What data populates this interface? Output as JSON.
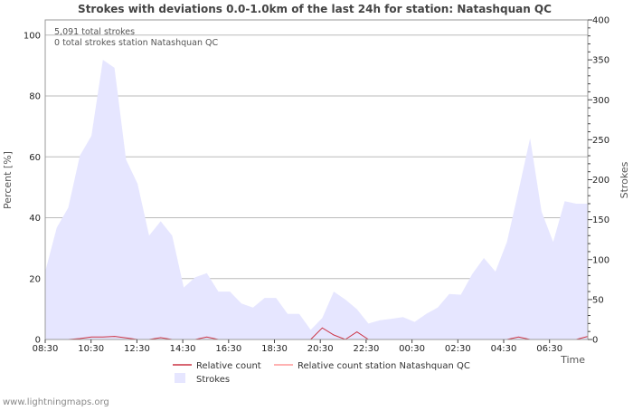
{
  "chart_data": {
    "type": "area",
    "title": "Strokes with deviations 0.0-1.0km of the last 24h for station: Natashquan QC",
    "xlabel": "Time",
    "ylabel": "Percent   [%]",
    "y2label": "Strokes",
    "ylim": [
      0,
      105
    ],
    "y2lim": [
      0,
      400
    ],
    "yticks": [
      0,
      20,
      40,
      60,
      80,
      100
    ],
    "y2ticks": [
      0,
      50,
      100,
      150,
      200,
      250,
      300,
      350,
      400
    ],
    "xticks": [
      "08:30",
      "10:30",
      "12:30",
      "14:30",
      "16:30",
      "18:30",
      "20:30",
      "22:30",
      "00:30",
      "02:30",
      "04:30",
      "06:30"
    ],
    "annotations": [
      "5,091 total strokes",
      "0 total strokes station Natashquan QC"
    ],
    "time_step_minutes": 15,
    "series": [
      {
        "name": "Strokes",
        "axis": "right",
        "values": [
          85,
          140,
          165,
          230,
          255,
          350,
          340,
          225,
          195,
          130,
          148,
          130,
          65,
          78,
          83,
          60,
          60,
          45,
          40,
          52,
          52,
          32,
          32,
          12,
          27,
          60,
          50,
          38,
          20,
          24,
          26,
          28,
          22,
          32,
          40,
          57,
          56,
          82,
          102,
          85,
          122,
          186,
          252,
          160,
          122,
          173,
          170,
          170
        ]
      },
      {
        "name": "Relative count",
        "axis": "left",
        "values": [
          0,
          0,
          0,
          0.3,
          0.8,
          0.8,
          1.0,
          0.5,
          0,
          0,
          0.6,
          0,
          0,
          0,
          0.8,
          0,
          0,
          0,
          0,
          0,
          0,
          0,
          0,
          0,
          3.8,
          1.5,
          0,
          2.5,
          0,
          0,
          0,
          0,
          0,
          0,
          0,
          0,
          0,
          0,
          0,
          0,
          0,
          0.8,
          0,
          0,
          0,
          0,
          0,
          1.0
        ]
      },
      {
        "name": "Relative count station Natashquan QC",
        "axis": "left",
        "values": [
          0,
          0,
          0,
          0,
          0,
          0,
          0,
          0,
          0,
          0,
          0,
          0,
          0,
          0,
          0,
          0,
          0,
          0,
          0,
          0,
          0,
          0,
          0,
          0,
          0,
          0,
          0,
          0,
          0,
          0,
          0,
          0,
          0,
          0,
          0,
          0,
          0,
          0,
          0,
          0,
          0,
          0,
          0,
          0,
          0,
          0,
          0,
          0
        ]
      }
    ],
    "colors": {
      "strokes_fill": "#e6e6ff",
      "relative": "#cc3344",
      "relative_station": "#ff9999",
      "grid": "#bbbbbb"
    }
  },
  "footer": "www.lightningmaps.org"
}
